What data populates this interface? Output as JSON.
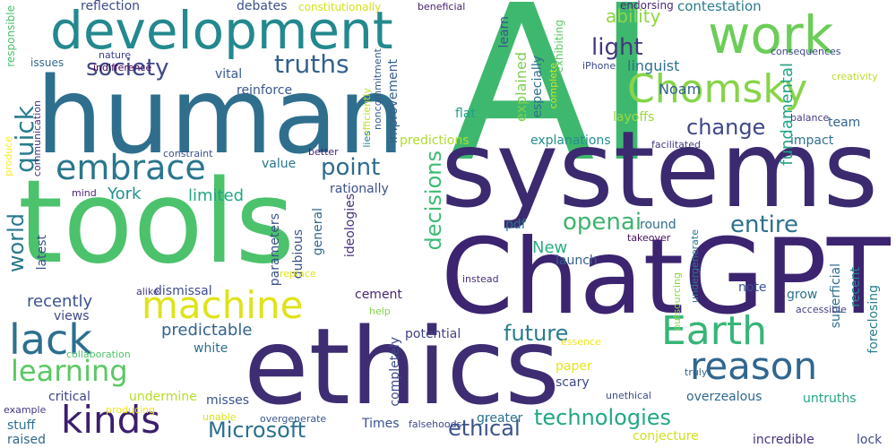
{
  "words": [
    {
      "text": "AI",
      "color": "#3eb86e"
    },
    {
      "text": "human",
      "color": "#2f6f8d"
    },
    {
      "text": "tools",
      "color": "#4cc26c"
    },
    {
      "text": "systems",
      "color": "#3b2a6f"
    },
    {
      "text": "ethics",
      "color": "#3e2d72"
    },
    {
      "text": "ChatGPT",
      "color": "#3c2470"
    },
    {
      "text": "development",
      "color": "#23898e"
    },
    {
      "text": "work",
      "color": "#6ccd59"
    },
    {
      "text": "Chomsky",
      "color": "#86d449"
    },
    {
      "text": "machine",
      "color": "#dfe318"
    },
    {
      "text": "lack",
      "color": "#2d6f8e"
    },
    {
      "text": "reason",
      "color": "#31668e"
    },
    {
      "text": "embrace",
      "color": "#2a768e"
    },
    {
      "text": "kinds",
      "color": "#3b1e6e"
    },
    {
      "text": "Earth",
      "color": "#36b677"
    },
    {
      "text": "learning",
      "color": "#5bc863"
    },
    {
      "text": "society",
      "color": "#3f4889"
    },
    {
      "text": "truths",
      "color": "#34608d"
    },
    {
      "text": "light",
      "color": "#453781"
    },
    {
      "text": "change",
      "color": "#3f4788"
    },
    {
      "text": "point",
      "color": "#2f6c8e"
    },
    {
      "text": "future",
      "color": "#287c8e"
    },
    {
      "text": "openai",
      "color": "#3eb46f"
    },
    {
      "text": "entire",
      "color": "#2d708e"
    },
    {
      "text": "technologies",
      "color": "#22a884"
    },
    {
      "text": "Microsoft",
      "color": "#2c718e"
    },
    {
      "text": "ethical",
      "color": "#3b528b"
    },
    {
      "text": "decisions",
      "color": "#3dbc74"
    },
    {
      "text": "quick",
      "color": "#287d8e"
    },
    {
      "text": "world",
      "color": "#2a788e"
    },
    {
      "text": "ability",
      "color": "#8fd744"
    },
    {
      "text": "linguist",
      "color": "#2c728e"
    },
    {
      "text": "Noam",
      "color": "#33628d"
    },
    {
      "text": "fundamental",
      "color": "#20a386"
    },
    {
      "text": "contestation",
      "color": "#2a7b8e"
    },
    {
      "text": "reflection",
      "color": "#3e4a89"
    },
    {
      "text": "debates",
      "color": "#3c4f8a"
    },
    {
      "text": "constitutionally",
      "color": "#d5e21a"
    },
    {
      "text": "beneficial",
      "color": "#482173"
    },
    {
      "text": "endorsing",
      "color": "#482878"
    },
    {
      "text": "learn",
      "color": "#3a548c"
    },
    {
      "text": "especially",
      "color": "#2e6e8e"
    },
    {
      "text": "explained",
      "color": "#7ad151"
    },
    {
      "text": "exhibiting",
      "color": "#5ec962"
    },
    {
      "text": "complete",
      "color": "#d2e21b"
    },
    {
      "text": "iPhone",
      "color": "#3f4889"
    },
    {
      "text": "consequences",
      "color": "#3e4989"
    },
    {
      "text": "creativity",
      "color": "#b8de29"
    },
    {
      "text": "nature",
      "color": "#424086"
    },
    {
      "text": "indifference",
      "color": "#440154"
    },
    {
      "text": "issues",
      "color": "#31688e"
    },
    {
      "text": "vital",
      "color": "#38588c"
    },
    {
      "text": "reinforce",
      "color": "#39568c"
    },
    {
      "text": "responsible",
      "color": "#4ac16d"
    },
    {
      "text": "improvement",
      "color": "#355f8d"
    },
    {
      "text": "noncommitment",
      "color": "#38598c"
    },
    {
      "text": "efficiently",
      "color": "#bddf26"
    },
    {
      "text": "lies",
      "color": "#27808e"
    },
    {
      "text": "flat",
      "color": "#1fa187"
    },
    {
      "text": "predictions",
      "color": "#addc30"
    },
    {
      "text": "explanations",
      "color": "#218f8d"
    },
    {
      "text": "layoffs",
      "color": "#9bd93c"
    },
    {
      "text": "balance",
      "color": "#443a83"
    },
    {
      "text": "team",
      "color": "#31668e"
    },
    {
      "text": "facilitated",
      "color": "#443983"
    },
    {
      "text": "impact",
      "color": "#2d708e"
    },
    {
      "text": "communication",
      "color": "#46337f"
    },
    {
      "text": "produce",
      "color": "#fde725"
    },
    {
      "text": "constraint",
      "color": "#3b518b"
    },
    {
      "text": "better",
      "color": "#482475"
    },
    {
      "text": "mind",
      "color": "#481f70"
    },
    {
      "text": "value",
      "color": "#2a768e"
    },
    {
      "text": "rationally",
      "color": "#3c508b"
    },
    {
      "text": "limited",
      "color": "#22a785"
    },
    {
      "text": "York",
      "color": "#21918c"
    },
    {
      "text": "New",
      "color": "#29af7f"
    },
    {
      "text": "parameters",
      "color": "#3b528b"
    },
    {
      "text": "latest",
      "color": "#3c4f8a"
    },
    {
      "text": "general",
      "color": "#31678e"
    },
    {
      "text": "dubious",
      "color": "#3b528b"
    },
    {
      "text": "ideologies",
      "color": "#46307e"
    },
    {
      "text": "pdf",
      "color": "#2c728e"
    },
    {
      "text": "round",
      "color": "#2f6c8e"
    },
    {
      "text": "launch",
      "color": "#34618d"
    },
    {
      "text": "takeover",
      "color": "#471063"
    },
    {
      "text": "undergenerate",
      "color": "#2a778e"
    },
    {
      "text": "note",
      "color": "#3a548c"
    },
    {
      "text": "recent",
      "color": "#24878e"
    },
    {
      "text": "superficial",
      "color": "#2e6e8e"
    },
    {
      "text": "foreclosing",
      "color": "#287d8e"
    },
    {
      "text": "grow",
      "color": "#2b748e"
    },
    {
      "text": "accessible",
      "color": "#433e85"
    },
    {
      "text": "outsourcing",
      "color": "#8bd646"
    },
    {
      "text": "instead",
      "color": "#46307e"
    },
    {
      "text": "replace",
      "color": "#dde318"
    },
    {
      "text": "recently",
      "color": "#3a548c"
    },
    {
      "text": "cement",
      "color": "#482677"
    },
    {
      "text": "dismissal",
      "color": "#3d4d8a"
    },
    {
      "text": "alike",
      "color": "#453781"
    },
    {
      "text": "predictable",
      "color": "#33628d"
    },
    {
      "text": "views",
      "color": "#3f4889"
    },
    {
      "text": "white",
      "color": "#2d708e"
    },
    {
      "text": "potential",
      "color": "#424186"
    },
    {
      "text": "help",
      "color": "#7fd34e"
    },
    {
      "text": "essence",
      "color": "#f1e51d"
    },
    {
      "text": "collaboration",
      "color": "#4ec36b"
    },
    {
      "text": "completely",
      "color": "#3e4c8a"
    },
    {
      "text": "paper",
      "color": "#e5e419"
    },
    {
      "text": "scary",
      "color": "#3f4889"
    },
    {
      "text": "truly",
      "color": "#31688e"
    },
    {
      "text": "unethical",
      "color": "#3d4e8a"
    },
    {
      "text": "untruths",
      "color": "#21a685"
    },
    {
      "text": "overzealous",
      "color": "#31688e"
    },
    {
      "text": "example",
      "color": "#443983"
    },
    {
      "text": "critical",
      "color": "#414487"
    },
    {
      "text": "undermine",
      "color": "#b5de2b"
    },
    {
      "text": "misses",
      "color": "#3b528b"
    },
    {
      "text": "producing",
      "color": "#efe51c"
    },
    {
      "text": "unable",
      "color": "#dde318"
    },
    {
      "text": "stuff",
      "color": "#2d708e"
    },
    {
      "text": "raised",
      "color": "#31688e"
    },
    {
      "text": "Times",
      "color": "#3b528b"
    },
    {
      "text": "greater",
      "color": "#2c728e"
    },
    {
      "text": "falsehoods",
      "color": "#3f4889"
    },
    {
      "text": "overgenerate",
      "color": "#38588c"
    },
    {
      "text": "conjecture",
      "color": "#d0e11c"
    },
    {
      "text": "incredible",
      "color": "#46317e"
    },
    {
      "text": "lock",
      "color": "#3e4989"
    }
  ]
}
